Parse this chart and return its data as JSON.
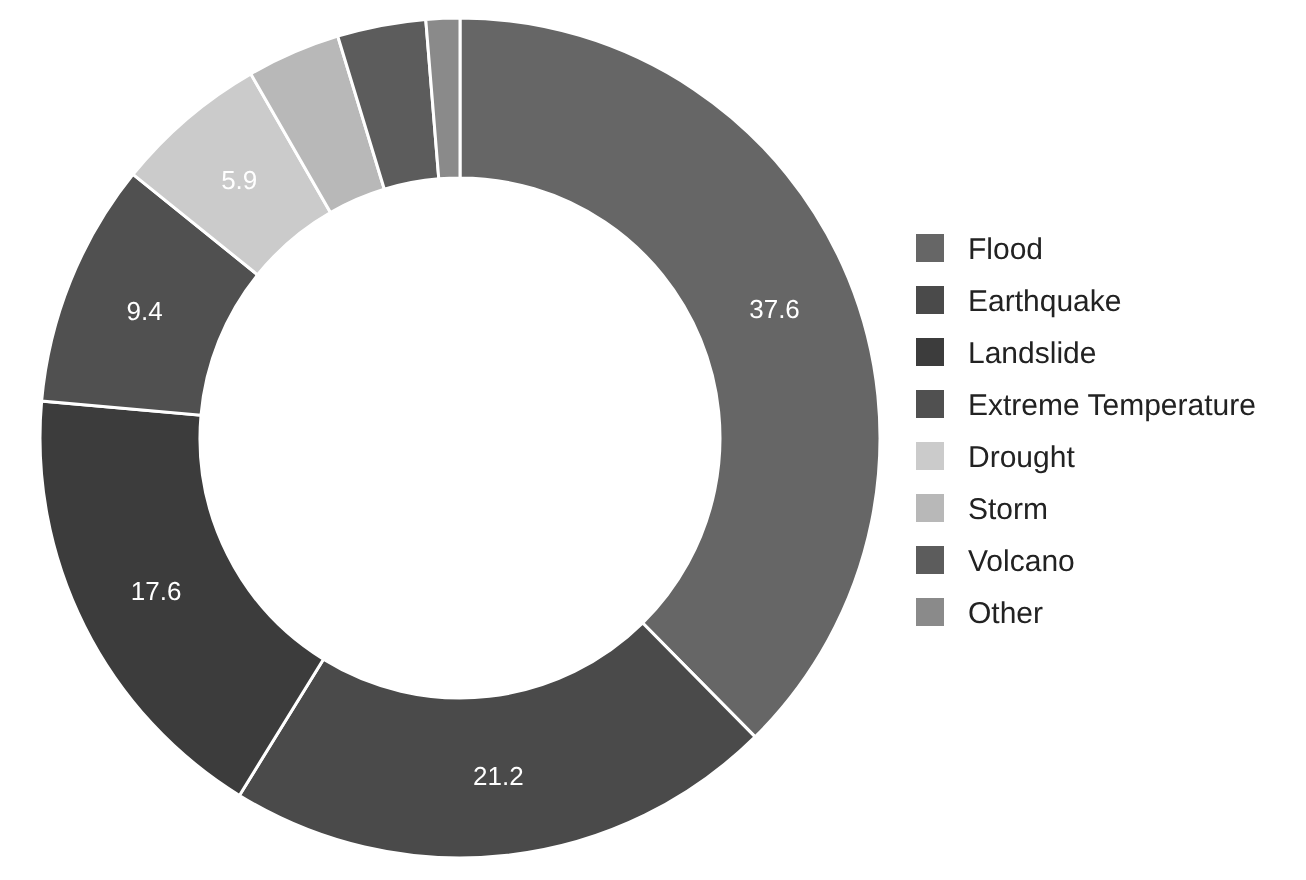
{
  "chart_data": {
    "type": "donut",
    "categories": [
      "Flood",
      "Earthquake",
      "Landslide",
      "Extreme Temperature",
      "Drought",
      "Storm",
      "Volcano",
      "Other"
    ],
    "values": [
      37.6,
      21.2,
      17.6,
      9.4,
      5.9,
      3.6,
      3.4,
      1.3
    ],
    "colors": [
      "#666666",
      "#4a4a4a",
      "#3c3c3c",
      "#505050",
      "#cbcbcb",
      "#b8b8b8",
      "#5c5c5c",
      "#8a8a8a"
    ],
    "value_labels": [
      "37.6",
      "21.2",
      "17.6",
      "9.4",
      "5.9",
      null,
      null,
      null
    ],
    "legend": "right"
  }
}
